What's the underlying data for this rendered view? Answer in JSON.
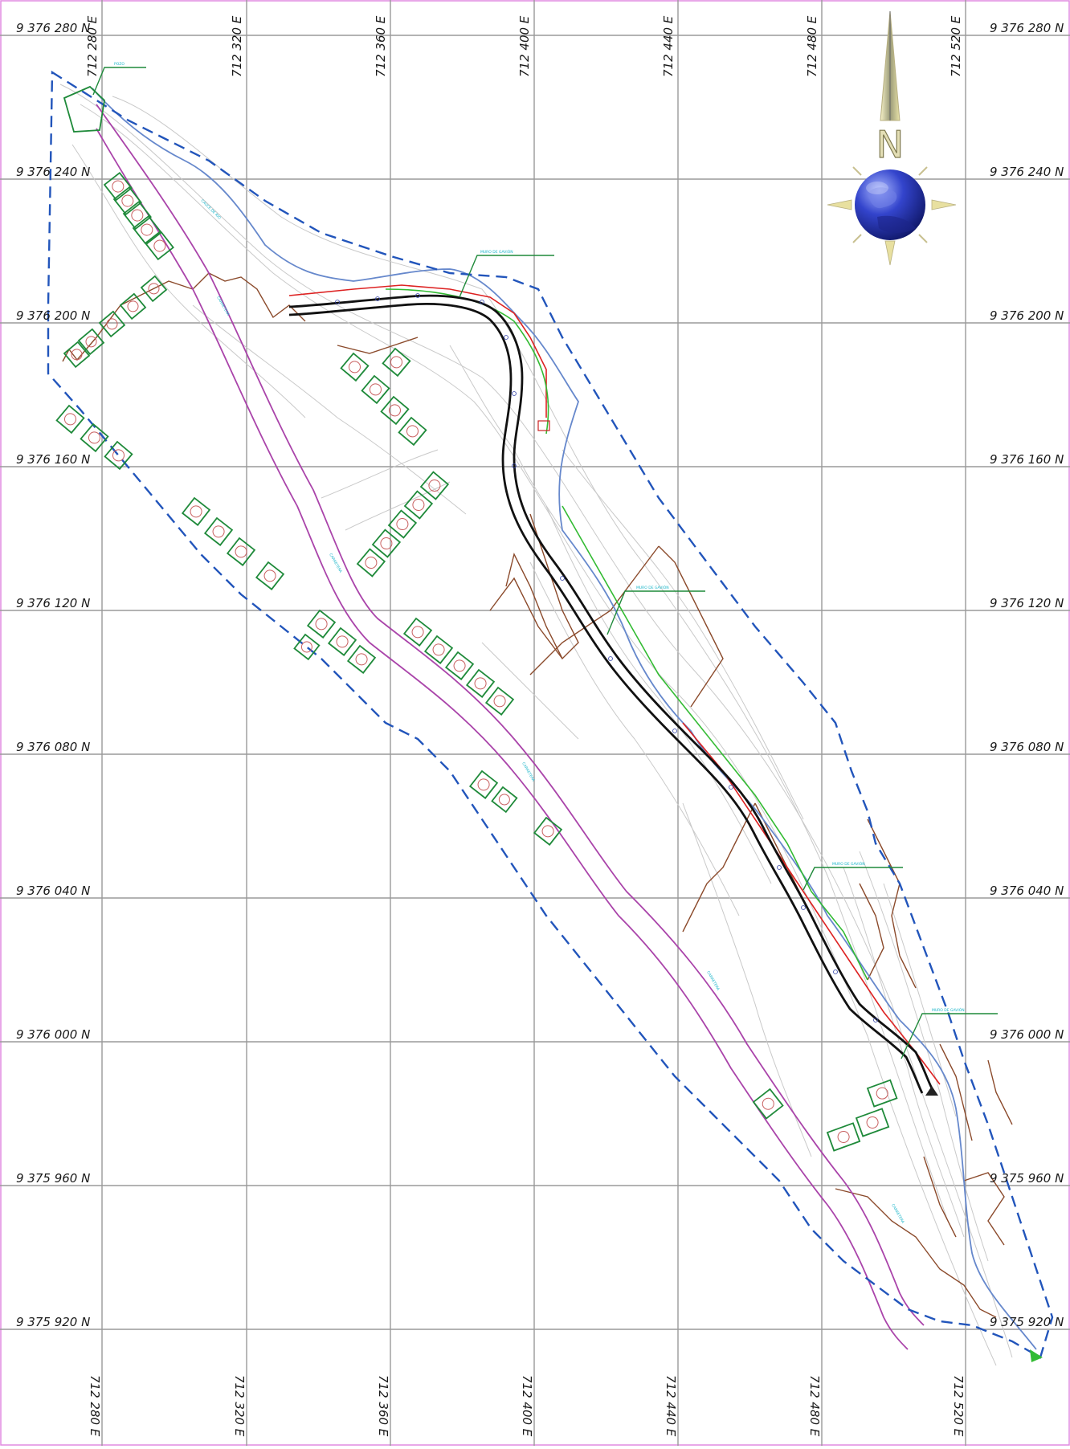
{
  "map": {
    "northing_labels": [
      "9 376 280 N",
      "9 376 240 N",
      "9 376 200 N",
      "9 376 160 N",
      "9 376 120 N",
      "9 376 080 N",
      "9 376 040 N",
      "9 376 000 N",
      "9 375 960 N",
      "9 375 920 N"
    ],
    "easting_labels": [
      "712 280 E",
      "712 320 E",
      "712 360 E",
      "712 400 E",
      "712 440 E",
      "712 480 E",
      "712 520 E"
    ],
    "compass_letter": "N",
    "feature_labels": {
      "pozo": "POZO",
      "muro_gaviones": "MURO DE GAVIÓN",
      "carretera": "CARRETERA",
      "cauce": "CAUCE DE RÍO"
    },
    "colors": {
      "boundary": "#2255bb",
      "road": "#aa44aa",
      "river": "#6688cc",
      "alignment": "#111111",
      "terrain": "#8b4a2b",
      "structures": "#1f8a3a",
      "red_line": "#dd2222",
      "green_line": "#33bb33",
      "labels": "#19b5c9"
    },
    "icons": [
      "compass-rose-icon",
      "globe-icon"
    ]
  }
}
